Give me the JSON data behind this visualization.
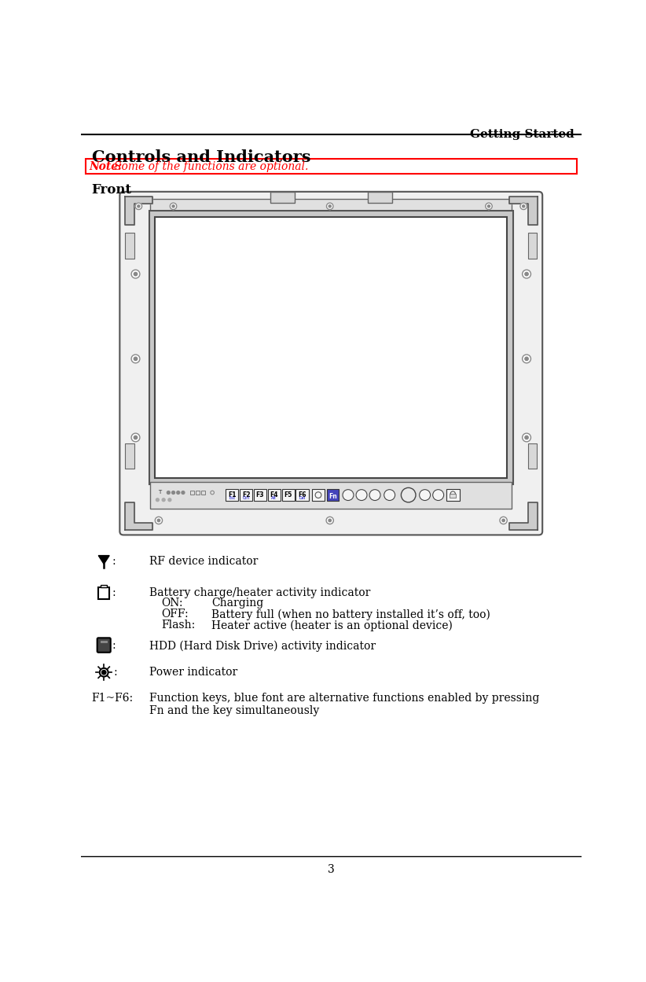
{
  "page_title": "Getting Started",
  "section_title": "Controls and Indicators",
  "note_bold": "Note:",
  "note_italic": " Some of the functions are optional.",
  "subsection": "Front",
  "page_number": "3",
  "bg_color": "#ffffff",
  "note_box_border_color": "#ff0000",
  "note_text_color": "#ff0000",
  "sub_items": [
    [
      "ON:",
      "Charging"
    ],
    [
      "OFF:",
      "Battery full (when no battery installed it’s off, too)"
    ],
    [
      "Flash:",
      "Heater active (heater is an optional device)"
    ]
  ]
}
